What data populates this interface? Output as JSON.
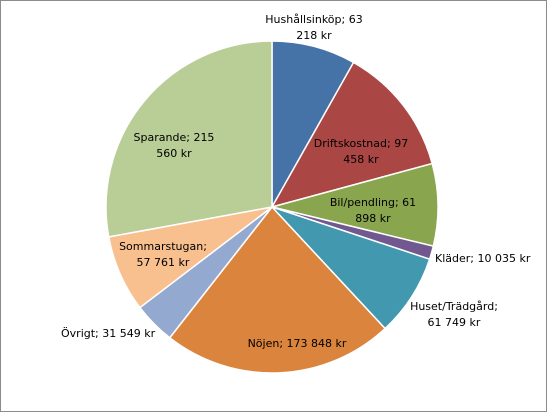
{
  "chart_data": {
    "type": "pie",
    "title": "",
    "start": "top, clockwise",
    "slices": [
      {
        "category": "Hushållsinköp",
        "value": 63218,
        "label_lines": [
          "Hushållsinköp; 63",
          "218 kr"
        ],
        "color": "#4572A7"
      },
      {
        "category": "Driftskostnad",
        "value": 97458,
        "label_lines": [
          "Driftskostnad; 97",
          "458 kr"
        ],
        "color": "#AA4643"
      },
      {
        "category": "Bil/pendling",
        "value": 61898,
        "label_lines": [
          "Bil/pendling; 61",
          "898 kr"
        ],
        "color": "#89A54E"
      },
      {
        "category": "Kläder",
        "value": 10035,
        "label_lines": [
          "Kläder; 10 035 kr"
        ],
        "color": "#71588F"
      },
      {
        "category": "Huset/Trädgård",
        "value": 61749,
        "label_lines": [
          "Huset/Trädgård;",
          "61 749 kr"
        ],
        "color": "#4198AF"
      },
      {
        "category": "Nöjen",
        "value": 173848,
        "label_lines": [
          "Nöjen; 173 848 kr"
        ],
        "color": "#DB843D"
      },
      {
        "category": "Övrigt",
        "value": 31549,
        "label_lines": [
          "Övrigt; 31 549 kr"
        ],
        "color": "#93A9CF"
      },
      {
        "category": "Sommarstugan",
        "value": 57761,
        "label_lines": [
          "Sommarstugan;",
          "57 761 kr"
        ],
        "color": "#F9C08F"
      },
      {
        "category": "Sparande",
        "value": 215560,
        "label_lines": [
          "Sparande; 215",
          "560 kr"
        ],
        "color": "#B9CD96"
      }
    ]
  }
}
